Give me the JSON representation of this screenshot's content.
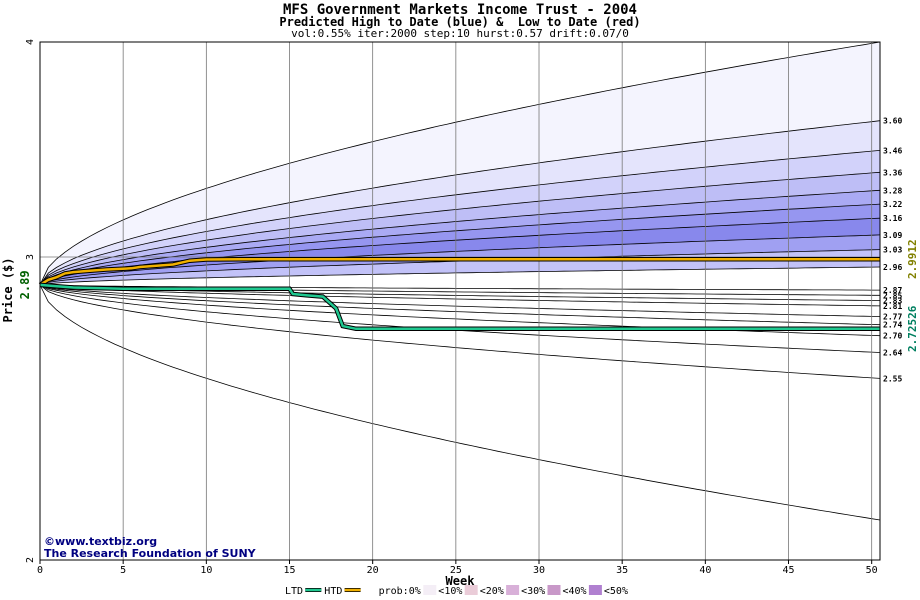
{
  "header": {
    "title": "MFS Government Markets Income Trust - 2004",
    "subtitle": "Predicted High to Date (blue) &  Low to Date (red)",
    "params": "vol:0.55% iter:2000 step:10 hurst:0.57 drift:0.07/0"
  },
  "credits": {
    "line1": "©www.textbiz.org",
    "line2": "The Research Foundation of SUNY"
  },
  "chart_data": {
    "type": "line",
    "title": "MFS Government Markets Income Trust - 2004",
    "xlabel": "Week",
    "ylabel": "Price ($)",
    "xlim": [
      0,
      50.5
    ],
    "ylim": [
      2,
      4
    ],
    "y_scale": "log",
    "x_ticks": [
      0,
      5,
      10,
      15,
      20,
      25,
      30,
      35,
      40,
      45,
      50
    ],
    "y_ticks": [
      2,
      3,
      4
    ],
    "grid": true,
    "start_price": 2.89,
    "current_price_label": "2.89",
    "htd_final_label": "2.9912",
    "ltd_final_label": "2.72526",
    "colors": {
      "htd": "#f0b000",
      "ltd": "#20c890",
      "htd_label": "#808000",
      "ltd_label": "#008060",
      "start_label": "#006000"
    },
    "high_bands": [
      {
        "end": 4.0,
        "fill": "#f4f4fe"
      },
      {
        "end": 3.6,
        "fill": "#e4e4fc"
      },
      {
        "end": 3.46,
        "fill": "#d2d2fa"
      },
      {
        "end": 3.36,
        "fill": "#bebef6"
      },
      {
        "end": 3.28,
        "fill": "#aaaaf4"
      },
      {
        "end": 3.22,
        "fill": "#9696f0"
      },
      {
        "end": 3.16,
        "fill": "#8888ec"
      },
      {
        "end": 3.09,
        "fill": "#a0a0f2"
      },
      {
        "end": 3.03,
        "fill": "#c2c2f8"
      },
      {
        "end": 2.96,
        "fill": "#ffffff"
      }
    ],
    "low_bands": [
      {
        "end": 2.87,
        "fill": "#ffe6e6"
      },
      {
        "end": 2.85,
        "fill": "#ffd4d4"
      },
      {
        "end": 2.83,
        "fill": "#ffb4b4"
      },
      {
        "end": 2.81,
        "fill": "#ff9c9c"
      },
      {
        "end": 2.77,
        "fill": "#ff8a8a"
      },
      {
        "end": 2.74,
        "fill": "#ffa4a4"
      },
      {
        "end": 2.7,
        "fill": "#ffc2c2"
      },
      {
        "end": 2.64,
        "fill": "#ffdede"
      },
      {
        "end": 2.55,
        "fill": "#fff2f2"
      },
      {
        "end": 2.11,
        "fill": "#ffffff"
      }
    ],
    "quantile_labels": [
      "3.60",
      "3.46",
      "3.36",
      "3.28",
      "3.22",
      "3.16",
      "3.09",
      "3.03",
      "2.96",
      "2.87",
      "2.85",
      "2.83",
      "2.81",
      "2.77",
      "2.74",
      "2.70",
      "2.64",
      "2.55"
    ],
    "htd_series": {
      "name": "HTD",
      "x": [
        0,
        0.5,
        1,
        1.5,
        2,
        3,
        4,
        5.5,
        6,
        7,
        8,
        9,
        10,
        12,
        15,
        20,
        30,
        40,
        50.5
      ],
      "y": [
        2.89,
        2.91,
        2.92,
        2.935,
        2.94,
        2.945,
        2.95,
        2.955,
        2.96,
        2.965,
        2.97,
        2.985,
        2.99,
        2.991,
        2.991,
        2.9912,
        2.9912,
        2.9912,
        2.9912
      ]
    },
    "ltd_series": {
      "name": "LTD",
      "x": [
        0,
        1,
        2,
        5,
        10,
        14,
        15,
        15.2,
        16,
        17,
        17.8,
        18.2,
        19,
        25,
        30,
        40,
        50.5
      ],
      "y": [
        2.89,
        2.885,
        2.88,
        2.875,
        2.875,
        2.875,
        2.875,
        2.855,
        2.85,
        2.845,
        2.8,
        2.735,
        2.72526,
        2.72526,
        2.72526,
        2.72526,
        2.72526
      ]
    },
    "legend": {
      "placement": "bottom",
      "items": [
        "LTD",
        "HTD",
        "prob:0%",
        "<10%",
        "<20%",
        "<30%",
        "<40%",
        "<50%"
      ],
      "swatch_colors": [
        "#20c890",
        "#f0b000",
        "#ffffff",
        "#f4eef6",
        "#eaccd8",
        "#d8b0d8",
        "#c898c8",
        "#b080d0"
      ]
    }
  }
}
